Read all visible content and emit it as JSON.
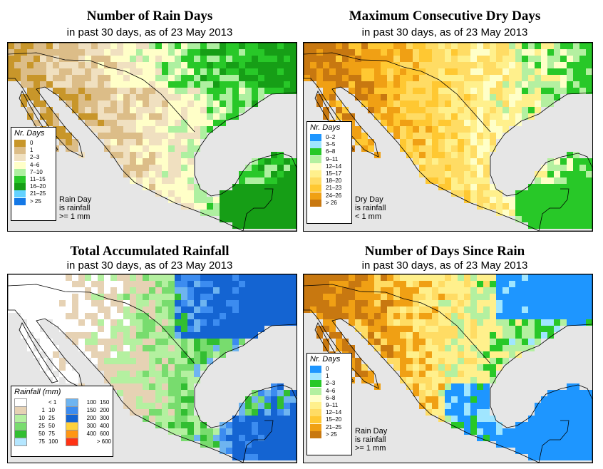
{
  "panels": [
    {
      "title": "Number of Rain Days",
      "subtitle": "in past 30 days, as of  23 May 2013",
      "legend_title": "Nr. Days",
      "legend": [
        {
          "label": "0",
          "color": "#c8962a"
        },
        {
          "label": "1",
          "color": "#dcbd88"
        },
        {
          "label": "2–3",
          "color": "#f0e0c0"
        },
        {
          "label": "4–6",
          "color": "#ffffc8"
        },
        {
          "label": "7–10",
          "color": "#aef0a0"
        },
        {
          "label": "11–15",
          "color": "#28c828"
        },
        {
          "label": "16–20",
          "color": "#169e16"
        },
        {
          "label": "21–25",
          "color": "#64d2ff"
        },
        {
          "label": "> 25",
          "color": "#1478e6"
        }
      ],
      "note": [
        "Rain Day",
        "is rainfall",
        ">= 1 mm"
      ]
    },
    {
      "title": "Maximum Consecutive Dry Days",
      "subtitle": "in past 30 days, as of  23 May 2013",
      "legend_title": "Nr. Days",
      "legend": [
        {
          "label": "0–2",
          "color": "#1e96ff"
        },
        {
          "label": "3–5",
          "color": "#a0e6ff"
        },
        {
          "label": "6–8",
          "color": "#28c828"
        },
        {
          "label": "9–11",
          "color": "#b4f0a0"
        },
        {
          "label": "12–14",
          "color": "#ffffc8"
        },
        {
          "label": "15–17",
          "color": "#fff08c"
        },
        {
          "label": "18–20",
          "color": "#ffdc64"
        },
        {
          "label": "21–23",
          "color": "#ffc832"
        },
        {
          "label": "24–26",
          "color": "#f0a014"
        },
        {
          "label": "> 26",
          "color": "#c87810"
        }
      ],
      "note": [
        "Dry Day",
        "is rainfall",
        "< 1 mm"
      ]
    },
    {
      "title": "Total Accumulated Rainfall",
      "subtitle": "in past 30 days, as of  23 May 2013",
      "legend_title": "Rainfall (mm)",
      "legend_left": [
        {
          "from": "",
          "to": "< 1",
          "color": "#ffffff"
        },
        {
          "from": "1",
          "to": "10",
          "color": "#e6d2b4"
        },
        {
          "from": "10",
          "to": "25",
          "color": "#b4f0a0"
        },
        {
          "from": "25",
          "to": "50",
          "color": "#78dc6e"
        },
        {
          "from": "50",
          "to": "75",
          "color": "#32be32"
        },
        {
          "from": "75",
          "to": "100",
          "color": "#b4e6ff"
        }
      ],
      "legend_right": [
        {
          "from": "100",
          "to": "150",
          "color": "#6eb4f0"
        },
        {
          "from": "150",
          "to": "200",
          "color": "#3c8cf0"
        },
        {
          "from": "200",
          "to": "300",
          "color": "#1464d2"
        },
        {
          "from": "300",
          "to": "400",
          "color": "#ffd23c"
        },
        {
          "from": "400",
          "to": "600",
          "color": "#ff9614"
        },
        {
          "from": "",
          "to": "> 600",
          "color": "#ff3214"
        }
      ]
    },
    {
      "title": "Number of Days Since Rain",
      "subtitle": "in past 30 days, as of  23 May 2013",
      "legend_title": "Nr. Days",
      "legend": [
        {
          "label": "0",
          "color": "#1e96ff"
        },
        {
          "label": "1",
          "color": "#a0e6ff"
        },
        {
          "label": "2–3",
          "color": "#28c828"
        },
        {
          "label": "4–6",
          "color": "#b4f0a0"
        },
        {
          "label": "6–8",
          "color": "#ffffc8"
        },
        {
          "label": "9–11",
          "color": "#fff08c"
        },
        {
          "label": "12–14",
          "color": "#ffdc64"
        },
        {
          "label": "15–20",
          "color": "#ffc832"
        },
        {
          "label": "21–25",
          "color": "#f0a014"
        },
        {
          "label": "> 25",
          "color": "#c87810"
        }
      ],
      "note": [
        "Rain Day",
        "is rainfall",
        ">= 1 mm"
      ]
    }
  ],
  "colors": {
    "ocean": "#e6e6e6",
    "border": "#000000"
  }
}
